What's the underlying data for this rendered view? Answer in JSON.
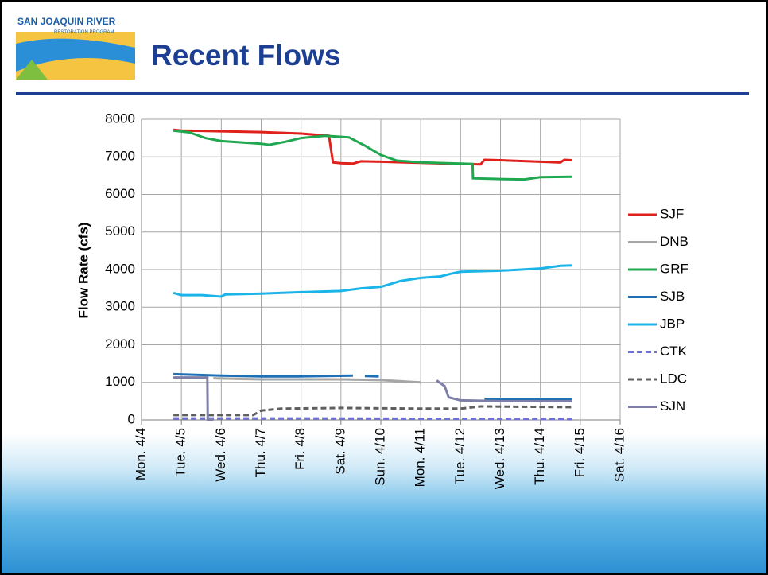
{
  "header": {
    "logo_title": "SAN JOAQUIN RIVER",
    "logo_subtitle": "RESTORATION PROGRAM",
    "title": "Recent Flows"
  },
  "chart_data": {
    "type": "line",
    "ylabel": "Flow Rate (cfs)",
    "xlim": [
      0,
      12
    ],
    "ylim": [
      0,
      8000
    ],
    "grid": true,
    "legend": "right",
    "xticks": [
      {
        "value": 0,
        "label": "Mon. 4/4"
      },
      {
        "value": 1,
        "label": "Tue. 4/5"
      },
      {
        "value": 2,
        "label": "Wed. 4/6"
      },
      {
        "value": 3,
        "label": "Thu. 4/7"
      },
      {
        "value": 4,
        "label": "Fri. 4/8"
      },
      {
        "value": 5,
        "label": "Sat. 4/9"
      },
      {
        "value": 6,
        "label": "Sun. 4/10"
      },
      {
        "value": 7,
        "label": "Mon. 4/11"
      },
      {
        "value": 8,
        "label": "Tue. 4/12"
      },
      {
        "value": 9,
        "label": "Wed. 4/13"
      },
      {
        "value": 10,
        "label": "Thu. 4/14"
      },
      {
        "value": 11,
        "label": "Fri. 4/15"
      },
      {
        "value": 12,
        "label": "Sat. 4/16"
      }
    ],
    "yticks": [
      0,
      1000,
      2000,
      3000,
      4000,
      5000,
      6000,
      7000,
      8000
    ],
    "series": [
      {
        "name": "SJF",
        "color": "#e0201b",
        "dashed": false,
        "x": [
          0.8,
          1,
          2,
          3,
          4,
          4.7,
          4.8,
          5,
          5.3,
          5.5,
          6,
          7,
          8,
          8.5,
          8.6,
          9,
          10,
          10.5,
          10.6,
          10.8
        ],
        "values": [
          7720,
          7700,
          7680,
          7660,
          7620,
          7560,
          6850,
          6830,
          6820,
          6880,
          6870,
          6840,
          6810,
          6800,
          6920,
          6910,
          6870,
          6850,
          6920,
          6910
        ]
      },
      {
        "name": "DNB",
        "color": "#a6a6a6",
        "dashed": false,
        "x": [
          1.8,
          3,
          5,
          6,
          7
        ],
        "values": [
          1110,
          1080,
          1080,
          1060,
          1000
        ]
      },
      {
        "name": "GRF",
        "color": "#1fa84f",
        "dashed": false,
        "x": [
          0.8,
          1.2,
          1.6,
          2,
          3,
          3.2,
          3.6,
          4,
          4.6,
          5.2,
          5.6,
          6,
          6.4,
          7,
          8,
          8.3,
          8.31,
          9,
          9.6,
          10,
          10.8
        ],
        "values": [
          7700,
          7650,
          7500,
          7420,
          7350,
          7320,
          7400,
          7500,
          7560,
          7520,
          7300,
          7050,
          6900,
          6850,
          6820,
          6810,
          6430,
          6410,
          6400,
          6460,
          6470
        ]
      },
      {
        "name": "SJB",
        "color": "#1f6fb5",
        "dashed": false,
        "x": [
          0.8,
          2,
          3,
          4,
          5.3,
          5.5,
          5.6,
          5.95,
          6,
          8.6,
          10.8
        ],
        "values": [
          1220,
          1180,
          1160,
          1160,
          1180,
          null,
          1170,
          1160,
          null,
          560,
          560
        ]
      },
      {
        "name": "JBP",
        "color": "#1ab4e8",
        "dashed": false,
        "x": [
          0.8,
          1,
          1.5,
          2,
          2.1,
          3,
          4,
          5,
          5.5,
          6,
          6.5,
          7,
          7.5,
          7.8,
          8,
          9,
          10,
          10.5,
          10.8
        ],
        "values": [
          3380,
          3320,
          3320,
          3280,
          3340,
          3360,
          3400,
          3430,
          3500,
          3540,
          3700,
          3780,
          3820,
          3900,
          3940,
          3970,
          4030,
          4100,
          4110
        ]
      },
      {
        "name": "CTK",
        "color": "#6f6fd8",
        "dashed": true,
        "x": [
          0.8,
          4,
          8,
          10.8
        ],
        "values": [
          40,
          40,
          30,
          20
        ]
      },
      {
        "name": "LDC",
        "color": "#5f5f5f",
        "dashed": true,
        "x": [
          0.8,
          2.8,
          3,
          3.5,
          5,
          7,
          8,
          8.5,
          10.8
        ],
        "values": [
          130,
          130,
          250,
          300,
          320,
          300,
          300,
          360,
          340
        ]
      },
      {
        "name": "SJN",
        "color": "#7d7fa8",
        "dashed": false,
        "x": [
          0.8,
          1.65,
          1.66,
          1.8,
          1.9,
          7.4,
          7.6,
          7.7,
          8,
          9,
          10.8
        ],
        "values": [
          1130,
          1130,
          10,
          10,
          null,
          1050,
          900,
          600,
          520,
          500,
          500
        ]
      }
    ]
  }
}
